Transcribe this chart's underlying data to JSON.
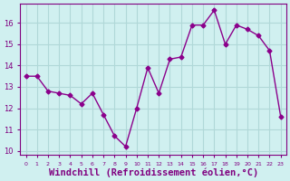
{
  "x": [
    0,
    1,
    2,
    3,
    4,
    5,
    6,
    7,
    8,
    9,
    10,
    11,
    12,
    13,
    14,
    15,
    16,
    17,
    18,
    19,
    20,
    21,
    22,
    23
  ],
  "y": [
    13.5,
    13.5,
    12.8,
    12.7,
    12.6,
    12.2,
    12.7,
    11.7,
    10.7,
    10.2,
    12.0,
    13.9,
    12.7,
    14.3,
    14.4,
    15.9,
    15.9,
    16.6,
    15.0,
    15.9,
    15.7,
    15.4,
    14.7,
    11.6
  ],
  "line_color": "#8B008B",
  "marker": "D",
  "markersize": 2.5,
  "linewidth": 1.0,
  "xlabel": "Windchill (Refroidissement éolien,°C)",
  "xlabel_fontsize": 7.5,
  "ylabel_ticks": [
    10,
    11,
    12,
    13,
    14,
    15,
    16
  ],
  "xtick_labels": [
    "0",
    "1",
    "2",
    "3",
    "4",
    "5",
    "6",
    "7",
    "8",
    "9",
    "10",
    "11",
    "12",
    "13",
    "14",
    "15",
    "16",
    "17",
    "18",
    "19",
    "20",
    "21",
    "22",
    "23"
  ],
  "ylim": [
    9.8,
    16.9
  ],
  "xlim": [
    -0.5,
    23.5
  ],
  "bg_color": "#d0f0f0",
  "grid_color": "#b0d8d8",
  "tick_color": "#800080",
  "label_color": "#800080"
}
